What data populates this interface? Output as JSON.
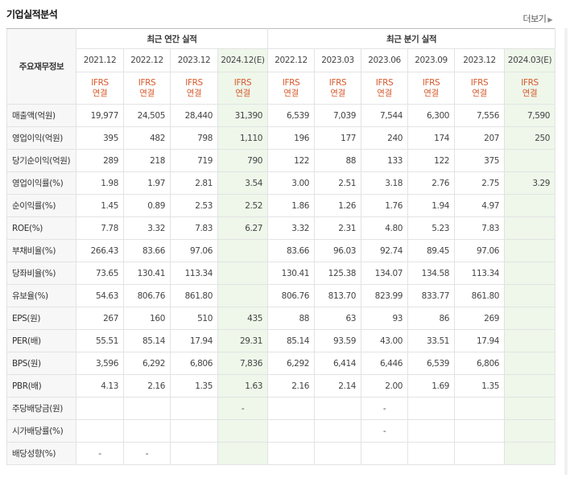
{
  "title": "기업실적분석",
  "more_label": "더보기",
  "header": {
    "row_label": "주요재무정보",
    "annual_group": "최근 연간 실적",
    "quarter_group": "최근 분기 실적",
    "periods": [
      "2021.12",
      "2022.12",
      "2023.12",
      "2024.12(E)",
      "2022.12",
      "2023.03",
      "2023.06",
      "2023.09",
      "2023.12",
      "2024.03(E)"
    ],
    "type_line1": "IFRS",
    "type_line2": "연결"
  },
  "rows": [
    {
      "label": "매출액(억원)",
      "values": [
        "19,977",
        "24,505",
        "28,440",
        "31,390",
        "6,539",
        "7,039",
        "7,544",
        "6,300",
        "7,556",
        "7,590"
      ]
    },
    {
      "label": "영업이익(억원)",
      "values": [
        "395",
        "482",
        "798",
        "1,110",
        "196",
        "177",
        "240",
        "174",
        "207",
        "250"
      ]
    },
    {
      "label": "당기순이익(억원)",
      "values": [
        "289",
        "218",
        "719",
        "790",
        "122",
        "88",
        "133",
        "122",
        "375",
        ""
      ]
    },
    {
      "label": "영업이익률(%)",
      "values": [
        "1.98",
        "1.97",
        "2.81",
        "3.54",
        "3.00",
        "2.51",
        "3.18",
        "2.76",
        "2.75",
        "3.29"
      ]
    },
    {
      "label": "순이익률(%)",
      "values": [
        "1.45",
        "0.89",
        "2.53",
        "2.52",
        "1.86",
        "1.26",
        "1.76",
        "1.94",
        "4.97",
        ""
      ]
    },
    {
      "label": "ROE(%)",
      "values": [
        "7.78",
        "3.32",
        "7.83",
        "6.27",
        "3.32",
        "2.31",
        "4.80",
        "5.23",
        "7.83",
        ""
      ]
    },
    {
      "label": "부채비율(%)",
      "values": [
        "266.43",
        "83.66",
        "97.06",
        "",
        "83.66",
        "96.03",
        "92.74",
        "89.45",
        "97.06",
        ""
      ]
    },
    {
      "label": "당좌비율(%)",
      "values": [
        "73.65",
        "130.41",
        "113.34",
        "",
        "130.41",
        "125.38",
        "134.07",
        "134.58",
        "113.34",
        ""
      ]
    },
    {
      "label": "유보율(%)",
      "values": [
        "54.63",
        "806.76",
        "861.80",
        "",
        "806.76",
        "813.70",
        "823.99",
        "833.77",
        "861.80",
        ""
      ]
    },
    {
      "label": "EPS(원)",
      "values": [
        "267",
        "160",
        "510",
        "435",
        "88",
        "63",
        "93",
        "86",
        "269",
        ""
      ]
    },
    {
      "label": "PER(배)",
      "values": [
        "55.51",
        "85.14",
        "17.94",
        "29.31",
        "85.14",
        "93.59",
        "43.00",
        "33.51",
        "17.94",
        ""
      ]
    },
    {
      "label": "BPS(원)",
      "values": [
        "3,596",
        "6,292",
        "6,806",
        "7,836",
        "6,292",
        "6,414",
        "6,446",
        "6,539",
        "6,806",
        ""
      ]
    },
    {
      "label": "PBR(배)",
      "values": [
        "4.13",
        "2.16",
        "1.35",
        "1.63",
        "2.16",
        "2.14",
        "2.00",
        "1.69",
        "1.35",
        ""
      ]
    },
    {
      "label": "주당배당금(원)",
      "values": [
        "",
        "",
        "",
        "-",
        "",
        "",
        "-",
        "",
        "",
        ""
      ]
    },
    {
      "label": "시가배당률(%)",
      "values": [
        "",
        "",
        "",
        "",
        "",
        "",
        "-",
        "",
        "",
        ""
      ]
    },
    {
      "label": "배당성향(%)",
      "values": [
        "-",
        "-",
        "",
        "",
        "",
        "",
        "",
        "",
        "",
        ""
      ]
    }
  ]
}
